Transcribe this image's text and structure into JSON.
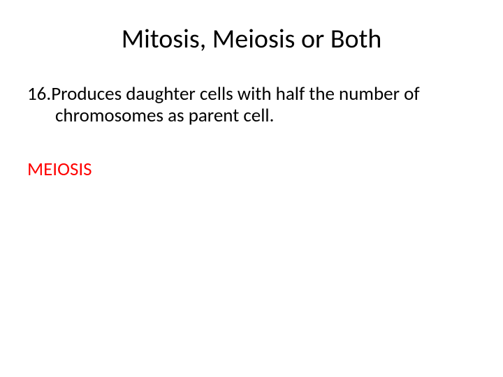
{
  "slide": {
    "title": "Mitosis, Meiosis or Both",
    "question_number": "16.",
    "question_text": "Produces daughter cells with half the number of chromosomes as parent cell.",
    "answer": "MEIOSIS",
    "colors": {
      "background": "#ffffff",
      "title_color": "#000000",
      "question_color": "#000000",
      "answer_color": "#ff0000"
    },
    "typography": {
      "title_fontsize": 38,
      "body_fontsize": 27,
      "font_family": "Calibri"
    }
  }
}
